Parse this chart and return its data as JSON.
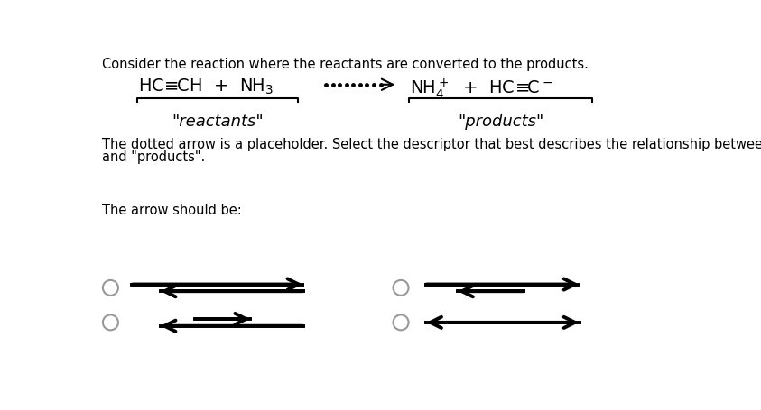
{
  "title_text": "Consider the reaction where the reactants are converted to the products.",
  "reactants_label": "\"reactants\"",
  "products_label": "\"products\"",
  "body_text1": "The dotted arrow is a placeholder. Select the descriptor that best describes the relationship between the \"reactants\"",
  "body_text2": "and \"products\".",
  "arrow_label": "The arrow should be:",
  "bg_color": "#ffffff",
  "text_color": "#000000",
  "font_size_title": 10.5,
  "font_size_formula": 14,
  "font_size_label": 13,
  "font_size_body": 10.5
}
